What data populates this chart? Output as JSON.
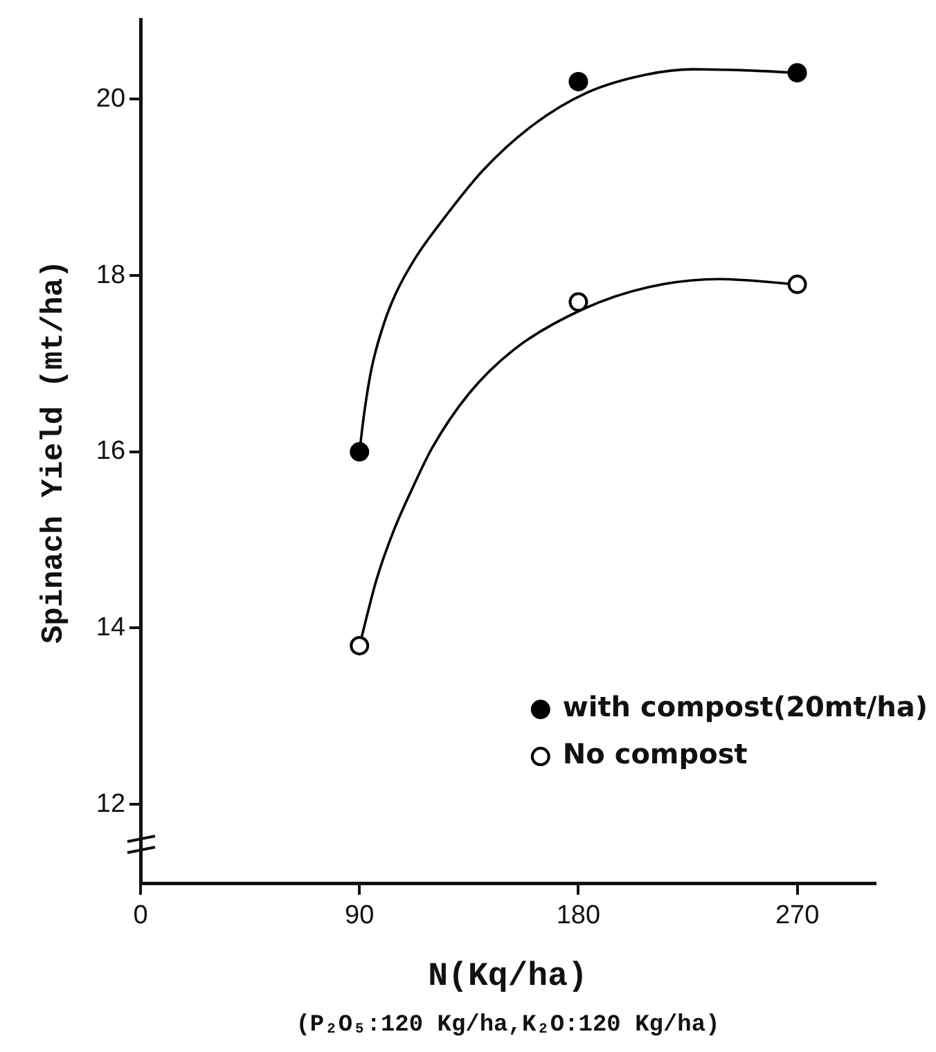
{
  "chart_data": {
    "type": "scatter",
    "xlabel": "N(Kq/ha)",
    "ylabel": "Spinach Yield (mt/ha)",
    "annotations": [
      "(P₂O₅:120 Kg/ha,K₂O:120 Kg/ha)"
    ],
    "x": [
      90,
      180,
      270
    ],
    "series": [
      {
        "name": "with compost(20mt/ha)",
        "type": "scatter",
        "color": "#000000",
        "marker": "circle",
        "values": [
          16.0,
          20.2,
          20.3
        ]
      },
      {
        "name": "No compost",
        "type": "scatter",
        "color": "#000000",
        "marker": "circle",
        "values": [
          13.8,
          17.7,
          17.9
        ]
      },
      {
        "type": "line",
        "color": "#000000",
        "marker": "none",
        "line_style": "solid",
        "x": [
          90,
          92,
          95,
          100,
          105,
          113,
          122,
          141,
          161,
          184,
          208,
          227,
          247,
          270
        ],
        "values": [
          16.0,
          16.45,
          16.95,
          17.45,
          17.8,
          18.2,
          18.55,
          19.2,
          19.7,
          20.08,
          20.28,
          20.34,
          20.33,
          20.3
        ]
      },
      {
        "type": "line",
        "color": "#000000",
        "marker": "none",
        "line_style": "solid",
        "x": [
          90,
          97,
          104,
          112,
          120,
          135,
          154,
          182,
          209,
          238,
          270
        ],
        "values": [
          13.8,
          14.55,
          15.1,
          15.6,
          16.05,
          16.66,
          17.17,
          17.62,
          17.87,
          17.96,
          17.9
        ]
      }
    ],
    "xlim": [
      0,
      302
    ],
    "xticks": [
      0,
      90,
      180,
      270
    ],
    "ylim": [
      11.1,
      20.9
    ],
    "yticks": [
      12,
      14,
      16,
      18,
      20
    ],
    "legend": "bottom right"
  }
}
